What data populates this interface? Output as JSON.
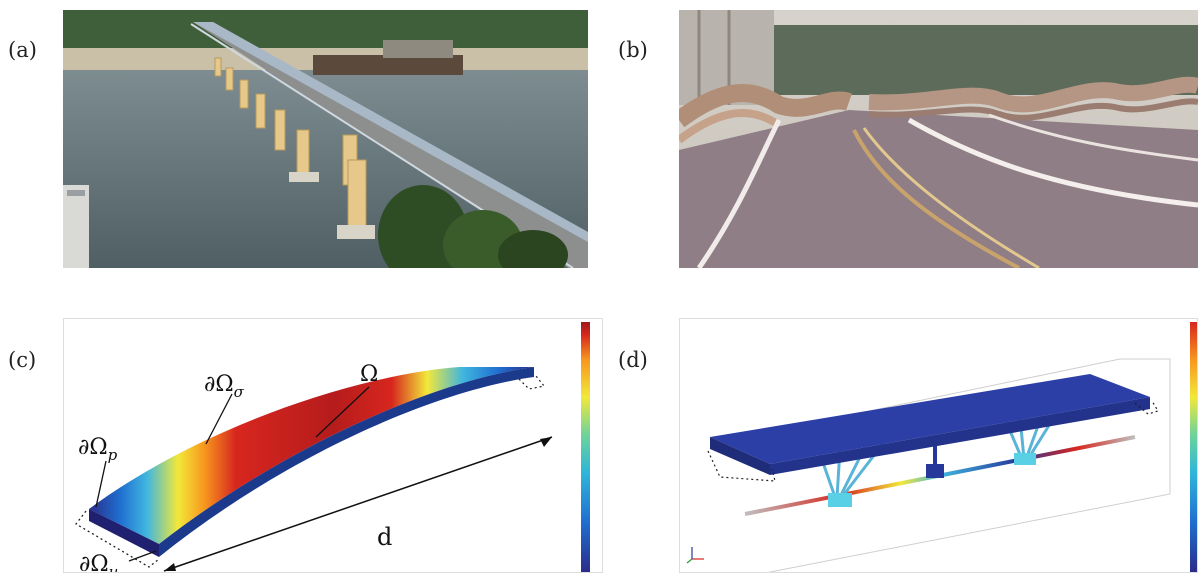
{
  "panels": {
    "a": {
      "label": "(a)"
    },
    "b": {
      "label": "(b)"
    },
    "c": {
      "label": "(c)",
      "domain_label": "Ω",
      "boundary_sigma": "∂Ω",
      "boundary_sigma_sub": "σ",
      "boundary_p": "∂Ω",
      "boundary_p_sub": "p",
      "boundary_u": "∂Ω",
      "boundary_u_sub": "u",
      "length_label": "d"
    },
    "d": {
      "label": "(d)"
    }
  },
  "colors": {
    "colormap": [
      "#2b2c8a",
      "#1f6fd0",
      "#2fb7d8",
      "#6fd39a",
      "#f2e83a",
      "#f7961e",
      "#d7261e",
      "#9a1b1b"
    ],
    "deck_blue": "#26389a",
    "water": "#6a7b80"
  }
}
